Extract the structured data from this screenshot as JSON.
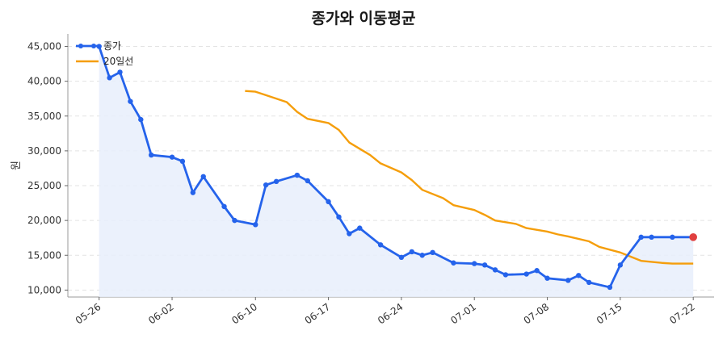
{
  "chart_data": {
    "type": "line",
    "title": "종가와 이동평균",
    "xlabel": "",
    "ylabel": "원",
    "ylim": [
      9000,
      46800
    ],
    "yticks": [
      10000,
      15000,
      20000,
      25000,
      30000,
      35000,
      40000,
      45000
    ],
    "ytick_labels": [
      "10,000",
      "15,000",
      "20,000",
      "25,000",
      "30,000",
      "35,000",
      "40,000",
      "45,000"
    ],
    "xlim": [
      "2024-05-23",
      "2024-07-24"
    ],
    "xticks": [
      "2024-05-26",
      "2024-06-02",
      "2024-06-10",
      "2024-06-17",
      "2024-06-24",
      "2024-07-01",
      "2024-07-08",
      "2024-07-15",
      "2024-07-22"
    ],
    "xtick_labels": [
      "05-26",
      "06-02",
      "06-10",
      "06-17",
      "06-24",
      "07-01",
      "07-08",
      "07-15",
      "07-22"
    ],
    "grid": "horizontal-dashed",
    "legend_position": "top-left",
    "legend": [
      "종가",
      "20일선"
    ],
    "colors": {
      "close": "#2563eb",
      "ma": "#f59e0b",
      "fill": "#e8eefb",
      "last_point": "#e04040"
    },
    "series": [
      {
        "name": "종가",
        "x": [
          "2024-05-26",
          "2024-05-27",
          "2024-05-28",
          "2024-05-29",
          "2024-05-30",
          "2024-05-31",
          "2024-06-02",
          "2024-06-03",
          "2024-06-04",
          "2024-06-05",
          "2024-06-07",
          "2024-06-08",
          "2024-06-10",
          "2024-06-11",
          "2024-06-12",
          "2024-06-14",
          "2024-06-15",
          "2024-06-17",
          "2024-06-18",
          "2024-06-19",
          "2024-06-20",
          "2024-06-22",
          "2024-06-24",
          "2024-06-25",
          "2024-06-26",
          "2024-06-27",
          "2024-06-29",
          "2024-07-01",
          "2024-07-02",
          "2024-07-03",
          "2024-07-04",
          "2024-07-06",
          "2024-07-07",
          "2024-07-08",
          "2024-07-10",
          "2024-07-11",
          "2024-07-12",
          "2024-07-14",
          "2024-07-15",
          "2024-07-17",
          "2024-07-18",
          "2024-07-20",
          "2024-07-22"
        ],
        "values": [
          45000,
          40500,
          41300,
          37100,
          34500,
          29400,
          29100,
          28500,
          24000,
          26300,
          22000,
          20000,
          19400,
          25100,
          25600,
          26500,
          25700,
          22700,
          20500,
          18100,
          18900,
          16500,
          14700,
          15500,
          15000,
          15400,
          13900,
          13800,
          13600,
          12900,
          12200,
          12300,
          12800,
          11700,
          11400,
          12100,
          11100,
          10400,
          13600,
          17600,
          17600,
          17600,
          17600
        ]
      },
      {
        "name": "20일선",
        "x": [
          "2024-06-09",
          "2024-06-10",
          "2024-06-11",
          "2024-06-13",
          "2024-06-14",
          "2024-06-15",
          "2024-06-17",
          "2024-06-18",
          "2024-06-19",
          "2024-06-21",
          "2024-06-22",
          "2024-06-24",
          "2024-06-25",
          "2024-06-26",
          "2024-06-28",
          "2024-06-29",
          "2024-07-01",
          "2024-07-02",
          "2024-07-03",
          "2024-07-05",
          "2024-07-06",
          "2024-07-08",
          "2024-07-09",
          "2024-07-10",
          "2024-07-12",
          "2024-07-13",
          "2024-07-15",
          "2024-07-16",
          "2024-07-17",
          "2024-07-19",
          "2024-07-20",
          "2024-07-22"
        ],
        "values": [
          38600,
          38500,
          38000,
          37000,
          35600,
          34600,
          34000,
          33000,
          31200,
          29400,
          28200,
          26900,
          25800,
          24400,
          23200,
          22200,
          21500,
          20800,
          20000,
          19500,
          18900,
          18400,
          18000,
          17700,
          17000,
          16200,
          15400,
          14800,
          14200,
          13900,
          13800,
          13800
        ]
      }
    ]
  }
}
